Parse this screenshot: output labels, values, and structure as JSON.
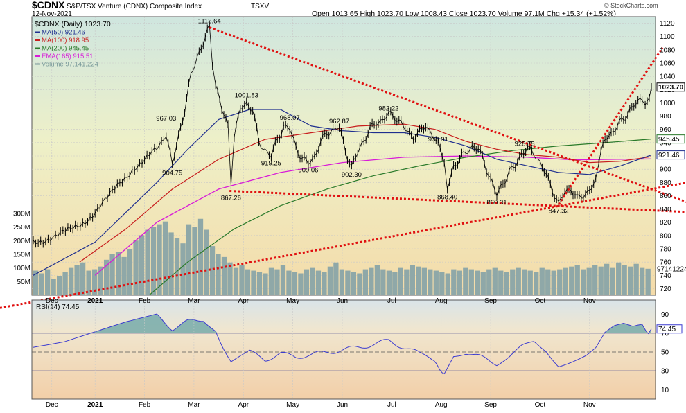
{
  "header": {
    "symbol": "$CDNX",
    "name": "S&P/TSX Venture (CDNX) Composite Index",
    "exchange": "TSXV",
    "date": "12-Nov-2021",
    "ohlc": "Open 1013.65  High 1023.70  Low 1008.43  Close 1023.70  Volume 97.1M  Chg +15.34 (+1.52%)",
    "watermark": "© StockCharts.com"
  },
  "legend": [
    {
      "label": "$CDNX (Daily) 1023.70",
      "color": "#000000"
    },
    {
      "label": "MA(50) 921.46",
      "color": "#1f2f8f"
    },
    {
      "label": "MA(100) 918.95",
      "color": "#c81e1e"
    },
    {
      "label": "MA(200) 945.45",
      "color": "#2a7a2a"
    },
    {
      "label": "EMA(165) 915.51",
      "color": "#d81bd8"
    },
    {
      "label": "Volume 97,141,224",
      "color": "#7a9a9a"
    }
  ],
  "colors": {
    "price": "#000000",
    "ma50": "#1f2f8f",
    "ma100": "#c81e1e",
    "ma200": "#2a7a2a",
    "ema165": "#d81bd8",
    "volume": "#8fa8a8",
    "trendline": "#e01010",
    "rsi": "#3b3bd0"
  },
  "price_axis_ticks": [
    "1120",
    "1100",
    "1080",
    "1060",
    "1040",
    "1020",
    "1000",
    "980",
    "960",
    "940",
    "920",
    "900",
    "880",
    "860",
    "840",
    "820",
    "800",
    "780",
    "760",
    "740",
    "720"
  ],
  "volume_axis_ticks": [
    "300M",
    "250M",
    "200M",
    "150M",
    "100M",
    "50M"
  ],
  "month_labels": [
    "Dec",
    "2021",
    "Feb",
    "Mar",
    "Apr",
    "May",
    "Jun",
    "Jul",
    "Aug",
    "Sep",
    "Oct",
    "Nov"
  ],
  "price_tags": [
    {
      "text": "1023.70",
      "color": "#000000"
    },
    {
      "text": "945.45",
      "color": "#2a7a2a"
    },
    {
      "text": "921.46",
      "color": "#1f2f8f"
    }
  ],
  "volume_tag": "97141224",
  "annotations": [
    "1113.64",
    "1001.83",
    "967.03",
    "968.07",
    "962.87",
    "982.22",
    "935.91",
    "928.75",
    "904.75",
    "919.25",
    "909.06",
    "902.30",
    "867.26",
    "868.40",
    "860.31",
    "847.32"
  ],
  "rsi": {
    "label": "RSI(14) 74.45",
    "ticks": [
      "90",
      "70",
      "50",
      "30",
      "10"
    ],
    "tag": "74.45"
  },
  "chart_data": {
    "type": "line",
    "title": "$CDNX S&P/TSX Venture (CDNX) Composite Index TSXV",
    "subtitle": "12-Nov-2021",
    "ylim": [
      710,
      1130
    ],
    "close_path": [
      [
        0,
        790
      ],
      [
        8,
        795
      ],
      [
        16,
        800
      ],
      [
        24,
        808
      ],
      [
        32,
        820
      ],
      [
        40,
        835
      ],
      [
        48,
        855
      ],
      [
        56,
        880
      ],
      [
        64,
        900
      ],
      [
        72,
        912
      ],
      [
        80,
        930
      ],
      [
        86,
        955
      ],
      [
        90,
        905
      ],
      [
        94,
        950
      ],
      [
        98,
        990
      ],
      [
        102,
        1040
      ],
      [
        106,
        1070
      ],
      [
        110,
        1090
      ],
      [
        114,
        1113.64
      ],
      [
        116,
        1050
      ],
      [
        118,
        1030
      ],
      [
        122,
        990
      ],
      [
        126,
        965
      ],
      [
        128,
        870
      ],
      [
        130,
        950
      ],
      [
        134,
        990
      ],
      [
        138,
        1000
      ],
      [
        142,
        990
      ],
      [
        146,
        940
      ],
      [
        150,
        930
      ],
      [
        154,
        919
      ],
      [
        158,
        945
      ],
      [
        162,
        965
      ],
      [
        166,
        960
      ],
      [
        170,
        935
      ],
      [
        174,
        915
      ],
      [
        178,
        909
      ],
      [
        182,
        920
      ],
      [
        186,
        940
      ],
      [
        190,
        955
      ],
      [
        194,
        960
      ],
      [
        198,
        962
      ],
      [
        202,
        930
      ],
      [
        206,
        902
      ],
      [
        210,
        925
      ],
      [
        214,
        945
      ],
      [
        218,
        960
      ],
      [
        222,
        970
      ],
      [
        226,
        975
      ],
      [
        230,
        982
      ],
      [
        234,
        980
      ],
      [
        238,
        970
      ],
      [
        242,
        955
      ],
      [
        246,
        950
      ],
      [
        250,
        955
      ],
      [
        254,
        965
      ],
      [
        258,
        955
      ],
      [
        262,
        935
      ],
      [
        266,
        915
      ],
      [
        268,
        870
      ],
      [
        272,
        905
      ],
      [
        276,
        915
      ],
      [
        280,
        925
      ],
      [
        284,
        935
      ],
      [
        288,
        930
      ],
      [
        292,
        910
      ],
      [
        296,
        885
      ],
      [
        300,
        860
      ],
      [
        304,
        880
      ],
      [
        308,
        895
      ],
      [
        312,
        905
      ],
      [
        316,
        925
      ],
      [
        320,
        930
      ],
      [
        324,
        925
      ],
      [
        328,
        910
      ],
      [
        332,
        890
      ],
      [
        336,
        870
      ],
      [
        340,
        847
      ],
      [
        344,
        865
      ],
      [
        348,
        872
      ],
      [
        352,
        855
      ],
      [
        356,
        860
      ],
      [
        360,
        870
      ],
      [
        364,
        880
      ],
      [
        366,
        910
      ],
      [
        370,
        945
      ],
      [
        374,
        955
      ],
      [
        378,
        965
      ],
      [
        382,
        975
      ],
      [
        386,
        990
      ],
      [
        390,
        998
      ],
      [
        394,
        1005
      ],
      [
        396,
        990
      ],
      [
        400,
        1023.7
      ]
    ],
    "ma50": [
      [
        0,
        740
      ],
      [
        40,
        790
      ],
      [
        80,
        880
      ],
      [
        100,
        930
      ],
      [
        120,
        975
      ],
      [
        140,
        990
      ],
      [
        160,
        990
      ],
      [
        180,
        965
      ],
      [
        200,
        958
      ],
      [
        220,
        955
      ],
      [
        240,
        955
      ],
      [
        260,
        948
      ],
      [
        280,
        935
      ],
      [
        300,
        915
      ],
      [
        320,
        905
      ],
      [
        340,
        895
      ],
      [
        360,
        892
      ],
      [
        380,
        905
      ],
      [
        400,
        921.46
      ]
    ],
    "ma100": [
      [
        30,
        760
      ],
      [
        60,
        810
      ],
      [
        90,
        870
      ],
      [
        120,
        915
      ],
      [
        150,
        945
      ],
      [
        180,
        955
      ],
      [
        210,
        965
      ],
      [
        240,
        968
      ],
      [
        260,
        960
      ],
      [
        280,
        942
      ],
      [
        300,
        930
      ],
      [
        320,
        922
      ],
      [
        340,
        918
      ],
      [
        360,
        910
      ],
      [
        380,
        912
      ],
      [
        400,
        918.95
      ]
    ],
    "ma200": [
      [
        70,
        700
      ],
      [
        100,
        760
      ],
      [
        130,
        810
      ],
      [
        160,
        845
      ],
      [
        190,
        870
      ],
      [
        220,
        890
      ],
      [
        250,
        905
      ],
      [
        280,
        918
      ],
      [
        310,
        928
      ],
      [
        340,
        935
      ],
      [
        370,
        940
      ],
      [
        400,
        945.45
      ]
    ],
    "ema165": [
      [
        40,
        740
      ],
      [
        80,
        820
      ],
      [
        120,
        870
      ],
      [
        160,
        895
      ],
      [
        200,
        910
      ],
      [
        240,
        918
      ],
      [
        280,
        920
      ],
      [
        320,
        918
      ],
      [
        350,
        914
      ],
      [
        380,
        915
      ],
      [
        400,
        915.51
      ]
    ],
    "volume_millions": [
      90,
      80,
      95,
      60,
      70,
      85,
      100,
      110,
      120,
      90,
      95,
      105,
      130,
      150,
      160,
      140,
      170,
      200,
      220,
      240,
      250,
      260,
      270,
      230,
      210,
      190,
      260,
      250,
      280,
      240,
      180,
      150,
      140,
      120,
      100,
      110,
      95,
      90,
      85,
      80,
      100,
      95,
      110,
      90,
      85,
      80,
      95,
      100,
      90,
      85,
      105,
      120,
      95,
      90,
      85,
      80,
      95,
      100,
      110,
      95,
      90,
      85,
      100,
      95,
      110,
      105,
      100,
      95,
      90,
      85,
      80,
      95,
      90,
      100,
      95,
      90,
      85,
      95,
      100,
      90,
      85,
      95,
      100,
      95,
      90,
      85,
      100,
      95,
      90,
      95,
      100,
      105,
      110,
      95,
      100,
      110,
      105,
      115,
      100,
      120,
      110,
      105,
      115,
      100,
      97
    ],
    "rsi14": [
      [
        0,
        55
      ],
      [
        20,
        60
      ],
      [
        40,
        70
      ],
      [
        60,
        80
      ],
      [
        80,
        88
      ],
      [
        90,
        75
      ],
      [
        100,
        82
      ],
      [
        110,
        85
      ],
      [
        118,
        72
      ],
      [
        128,
        40
      ],
      [
        140,
        50
      ],
      [
        150,
        42
      ],
      [
        160,
        48
      ],
      [
        170,
        45
      ],
      [
        180,
        47
      ],
      [
        190,
        50
      ],
      [
        200,
        52
      ],
      [
        210,
        55
      ],
      [
        220,
        58
      ],
      [
        230,
        62
      ],
      [
        240,
        55
      ],
      [
        250,
        48
      ],
      [
        258,
        40
      ],
      [
        262,
        35
      ],
      [
        266,
        28
      ],
      [
        272,
        45
      ],
      [
        280,
        50
      ],
      [
        290,
        44
      ],
      [
        300,
        38
      ],
      [
        308,
        45
      ],
      [
        316,
        55
      ],
      [
        324,
        60
      ],
      [
        332,
        52
      ],
      [
        340,
        36
      ],
      [
        346,
        40
      ],
      [
        352,
        44
      ],
      [
        358,
        48
      ],
      [
        364,
        55
      ],
      [
        370,
        70
      ],
      [
        376,
        76
      ],
      [
        382,
        78
      ],
      [
        388,
        75
      ],
      [
        394,
        78
      ],
      [
        398,
        72
      ],
      [
        400,
        74.45
      ]
    ],
    "rsi_ylim": [
      0,
      100
    ],
    "trendlines": [
      {
        "from": [
          114,
          1113.64
        ],
        "to": [
          400,
          870
        ]
      },
      {
        "from": [
          127,
          867.26
        ],
        "to": [
          400,
          838
        ]
      },
      {
        "from": [
          0,
          700
        ],
        "to": [
          400,
          870
        ]
      },
      {
        "from": [
          340,
          847
        ],
        "to": [
          400,
          1058
        ]
      }
    ],
    "volume_ylim": [
      0,
      320
    ]
  }
}
